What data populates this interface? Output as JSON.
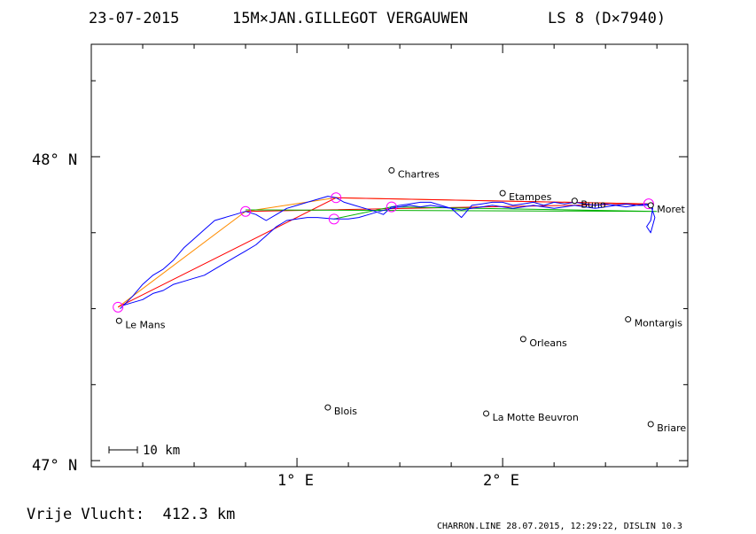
{
  "header": {
    "date": "23-07-2015",
    "title": "15M×JAN.GILLEGOT VERGAUWEN",
    "subtitle": "LS 8 (D×7940)"
  },
  "axes": {
    "lat_labels": [
      "48° N",
      "47° N"
    ],
    "lon_labels": [
      "1° E",
      "2° E"
    ]
  },
  "cities": [
    {
      "name": "Chartres",
      "lon": 1.46,
      "lat": 47.955
    },
    {
      "name": "Etampes",
      "lon": 2.0,
      "lat": 47.88
    },
    {
      "name": "Buno",
      "lon": 2.35,
      "lat": 47.855
    },
    {
      "name": "Moret",
      "lon": 2.72,
      "lat": 47.84
    },
    {
      "name": "Le Mans",
      "lon": 0.135,
      "lat": 47.46
    },
    {
      "name": "Orleans",
      "lon": 2.1,
      "lat": 47.4
    },
    {
      "name": "Montargis",
      "lon": 2.61,
      "lat": 47.465
    },
    {
      "name": "Blois",
      "lon": 1.15,
      "lat": 47.175
    },
    {
      "name": "La Motte Beuvron",
      "lon": 1.92,
      "lat": 47.155
    },
    {
      "name": "Briare",
      "lon": 2.72,
      "lat": 47.12
    }
  ],
  "turnpoints": [
    {
      "lon": 0.13,
      "lat": 47.505
    },
    {
      "lon": 0.75,
      "lat": 47.82
    },
    {
      "lon": 1.19,
      "lat": 47.865
    },
    {
      "lon": 1.18,
      "lat": 47.795
    },
    {
      "lon": 1.46,
      "lat": 47.835
    },
    {
      "lon": 2.71,
      "lat": 47.845
    }
  ],
  "scale_bar": "10 km",
  "footer": {
    "distance": "Vrije Vlucht:  412.3 km",
    "credit": "CHARRON.LINE 28.07.2015, 12:29:22, DISLIN 10.3"
  },
  "colors": {
    "track": "#0000ff",
    "route_orange": "#ff8c00",
    "route_red": "#ff0000",
    "route_green": "#00b000",
    "turnpoint": "#ff00ff",
    "frame": "#000000"
  },
  "chart_data": {
    "type": "map",
    "title": "23-07-2015   15M×JAN.GILLEGOT VERGAUWEN   LS 8 (D×7940)",
    "lon_range": [
      0.0,
      2.9
    ],
    "lat_range": [
      46.98,
      48.37
    ],
    "x_ticks": [
      1,
      2
    ],
    "y_ticks": [
      47,
      48
    ],
    "series": [
      {
        "name": "",
        "kind": "track",
        "points": [
          [
            0.14,
            47.5
          ],
          [
            0.2,
            47.54
          ],
          [
            0.25,
            47.58
          ],
          [
            0.3,
            47.61
          ],
          [
            0.35,
            47.63
          ],
          [
            0.4,
            47.66
          ],
          [
            0.45,
            47.7
          ],
          [
            0.5,
            47.73
          ],
          [
            0.55,
            47.76
          ],
          [
            0.6,
            47.79
          ],
          [
            0.65,
            47.8
          ],
          [
            0.7,
            47.81
          ],
          [
            0.75,
            47.82
          ],
          [
            0.8,
            47.81
          ],
          [
            0.85,
            47.79
          ],
          [
            0.9,
            47.81
          ],
          [
            0.95,
            47.83
          ],
          [
            1.0,
            47.84
          ],
          [
            1.05,
            47.85
          ],
          [
            1.1,
            47.86
          ],
          [
            1.15,
            47.87
          ],
          [
            1.19,
            47.865
          ],
          [
            1.23,
            47.85
          ],
          [
            1.28,
            47.84
          ],
          [
            1.33,
            47.83
          ],
          [
            1.38,
            47.82
          ],
          [
            1.42,
            47.81
          ],
          [
            1.46,
            47.835
          ],
          [
            1.5,
            47.84
          ],
          [
            1.55,
            47.845
          ],
          [
            1.6,
            47.85
          ],
          [
            1.65,
            47.85
          ],
          [
            1.7,
            47.84
          ],
          [
            1.75,
            47.83
          ],
          [
            1.8,
            47.8
          ],
          [
            1.85,
            47.84
          ],
          [
            1.9,
            47.845
          ],
          [
            1.95,
            47.85
          ],
          [
            2.0,
            47.85
          ],
          [
            2.05,
            47.84
          ],
          [
            2.1,
            47.845
          ],
          [
            2.15,
            47.85
          ],
          [
            2.2,
            47.84
          ],
          [
            2.25,
            47.85
          ],
          [
            2.3,
            47.845
          ],
          [
            2.35,
            47.85
          ],
          [
            2.4,
            47.845
          ],
          [
            2.45,
            47.84
          ],
          [
            2.5,
            47.845
          ],
          [
            2.55,
            47.84
          ],
          [
            2.6,
            47.845
          ],
          [
            2.65,
            47.84
          ],
          [
            2.7,
            47.845
          ],
          [
            2.73,
            47.83
          ],
          [
            2.72,
            47.79
          ],
          [
            2.7,
            47.77
          ],
          [
            2.72,
            47.75
          ],
          [
            2.74,
            47.8
          ],
          [
            2.72,
            47.84
          ],
          [
            2.65,
            47.84
          ],
          [
            2.6,
            47.835
          ],
          [
            2.55,
            47.84
          ],
          [
            2.5,
            47.835
          ],
          [
            2.45,
            47.83
          ],
          [
            2.4,
            47.835
          ],
          [
            2.35,
            47.84
          ],
          [
            2.3,
            47.835
          ],
          [
            2.25,
            47.83
          ],
          [
            2.2,
            47.835
          ],
          [
            2.15,
            47.84
          ],
          [
            2.1,
            47.835
          ],
          [
            2.05,
            47.83
          ],
          [
            2.0,
            47.835
          ],
          [
            1.95,
            47.84
          ],
          [
            1.9,
            47.835
          ],
          [
            1.85,
            47.83
          ],
          [
            1.8,
            47.825
          ],
          [
            1.75,
            47.83
          ],
          [
            1.7,
            47.835
          ],
          [
            1.65,
            47.84
          ],
          [
            1.6,
            47.835
          ],
          [
            1.55,
            47.84
          ],
          [
            1.5,
            47.835
          ],
          [
            1.46,
            47.83
          ],
          [
            1.4,
            47.82
          ],
          [
            1.35,
            47.81
          ],
          [
            1.3,
            47.8
          ],
          [
            1.25,
            47.795
          ],
          [
            1.18,
            47.795
          ],
          [
            1.1,
            47.8
          ],
          [
            1.05,
            47.8
          ],
          [
            1.0,
            47.795
          ],
          [
            0.95,
            47.79
          ],
          [
            0.9,
            47.77
          ],
          [
            0.85,
            47.74
          ],
          [
            0.8,
            47.71
          ],
          [
            0.75,
            47.69
          ],
          [
            0.7,
            47.67
          ],
          [
            0.65,
            47.65
          ],
          [
            0.6,
            47.63
          ],
          [
            0.55,
            47.61
          ],
          [
            0.5,
            47.6
          ],
          [
            0.45,
            47.59
          ],
          [
            0.4,
            47.58
          ],
          [
            0.35,
            47.56
          ],
          [
            0.3,
            47.55
          ],
          [
            0.25,
            47.53
          ],
          [
            0.2,
            47.52
          ],
          [
            0.15,
            47.51
          ]
        ]
      },
      {
        "name": "",
        "kind": "route",
        "color": "orange",
        "points": [
          [
            0.13,
            47.505
          ],
          [
            0.75,
            47.82
          ],
          [
            1.19,
            47.865
          ],
          [
            2.71,
            47.845
          ]
        ]
      },
      {
        "name": "",
        "kind": "route",
        "color": "red",
        "points": [
          [
            0.13,
            47.505
          ],
          [
            1.19,
            47.865
          ],
          [
            2.71,
            47.845
          ],
          [
            0.75,
            47.82
          ]
        ]
      },
      {
        "name": "",
        "kind": "route",
        "color": "green",
        "points": [
          [
            1.18,
            47.795
          ],
          [
            1.46,
            47.835
          ],
          [
            2.75,
            47.82
          ],
          [
            0.75,
            47.825
          ]
        ]
      }
    ]
  }
}
